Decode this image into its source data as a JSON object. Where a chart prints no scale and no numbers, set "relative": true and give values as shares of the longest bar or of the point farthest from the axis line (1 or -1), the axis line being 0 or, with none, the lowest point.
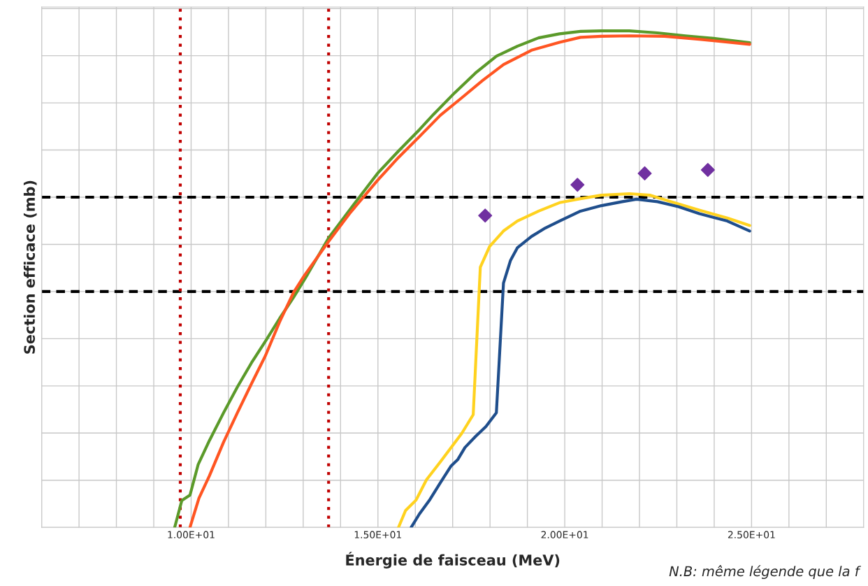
{
  "chart_data": {
    "type": "line",
    "relative": true,
    "xlabel": "Énergie de faisceau (MeV)",
    "ylabel": "Section efficace (mb)",
    "xlim": [
      6,
      28
    ],
    "xticks": [
      {
        "value": 6,
        "label": null
      },
      {
        "value": 7,
        "label": null
      },
      {
        "value": 8,
        "label": null
      },
      {
        "value": 9,
        "label": null
      },
      {
        "value": 10,
        "label": "1.00E+01"
      },
      {
        "value": 11,
        "label": null
      },
      {
        "value": 12,
        "label": null
      },
      {
        "value": 13,
        "label": null
      },
      {
        "value": 14,
        "label": null
      },
      {
        "value": 15,
        "label": "1.50E+01"
      },
      {
        "value": 16,
        "label": null
      },
      {
        "value": 17,
        "label": null
      },
      {
        "value": 18,
        "label": null
      },
      {
        "value": 19,
        "label": null
      },
      {
        "value": 20,
        "label": "2.00E+01"
      },
      {
        "value": 21,
        "label": null
      },
      {
        "value": 22,
        "label": null
      },
      {
        "value": 23,
        "label": null
      },
      {
        "value": 24,
        "label": null
      },
      {
        "value": 25,
        "label": "2.50E+01"
      },
      {
        "value": 26,
        "label": null
      },
      {
        "value": 27,
        "label": null
      },
      {
        "value": 28,
        "label": null
      }
    ],
    "grid": true,
    "tick_labels": "x",
    "marker": "none",
    "line_style": "solid",
    "series": [
      {
        "color": "#5b9a2a",
        "x": [
          9.56,
          9.75,
          9.97,
          10.19,
          10.49,
          10.87,
          11.24,
          11.62,
          11.99,
          12.37,
          12.74,
          13.12,
          13.68,
          14.24,
          14.99,
          15.55,
          16.11,
          16.49,
          17.05,
          17.61,
          18.17,
          18.73,
          19.3,
          19.86,
          20.42,
          20.98,
          21.73,
          22.48,
          23.23,
          23.98,
          24.95
        ],
        "values": [
          0,
          0.054,
          0.065,
          0.127,
          0.175,
          0.231,
          0.283,
          0.332,
          0.375,
          0.421,
          0.463,
          0.51,
          0.583,
          0.639,
          0.713,
          0.758,
          0.801,
          0.832,
          0.875,
          0.915,
          0.949,
          0.969,
          0.986,
          0.994,
          0.999,
          1.0,
          1.0,
          0.996,
          0.99,
          0.985,
          0.976
        ]
      },
      {
        "color": "#ff5522",
        "x": [
          9.97,
          10.21,
          10.49,
          10.87,
          11.24,
          11.62,
          11.99,
          12.37,
          12.74,
          13.02,
          13.68,
          14.24,
          14.99,
          15.55,
          16.11,
          16.67,
          17.24,
          17.8,
          18.36,
          19.11,
          19.86,
          20.42,
          20.98,
          21.73,
          22.67,
          23.6,
          24.95
        ],
        "values": [
          0,
          0.059,
          0.104,
          0.172,
          0.231,
          0.29,
          0.346,
          0.414,
          0.473,
          0.506,
          0.576,
          0.632,
          0.699,
          0.745,
          0.787,
          0.83,
          0.865,
          0.9,
          0.932,
          0.961,
          0.977,
          0.987,
          0.989,
          0.99,
          0.989,
          0.983,
          0.973
        ]
      },
      {
        "color": "#ffd21f",
        "x": [
          15.55,
          15.74,
          16.02,
          16.3,
          16.67,
          17.24,
          17.55,
          17.74,
          17.99,
          18.36,
          18.73,
          19.3,
          19.86,
          20.42,
          20.98,
          21.73,
          22.29,
          22.85,
          23.6,
          24.35,
          24.95
        ],
        "values": [
          0,
          0.034,
          0.055,
          0.096,
          0.132,
          0.189,
          0.227,
          0.524,
          0.566,
          0.597,
          0.617,
          0.637,
          0.654,
          0.662,
          0.669,
          0.672,
          0.669,
          0.656,
          0.639,
          0.623,
          0.608
        ]
      },
      {
        "color": "#1f4e8c",
        "x": [
          15.89,
          16.11,
          16.39,
          16.67,
          16.96,
          17.14,
          17.33,
          17.61,
          17.89,
          18.17,
          18.36,
          18.55,
          18.73,
          19.11,
          19.48,
          19.86,
          20.42,
          20.98,
          21.54,
          21.92,
          22.48,
          23.04,
          23.6,
          24.35,
          24.95
        ],
        "values": [
          0,
          0.027,
          0.056,
          0.09,
          0.124,
          0.137,
          0.161,
          0.183,
          0.203,
          0.231,
          0.492,
          0.538,
          0.563,
          0.586,
          0.603,
          0.617,
          0.637,
          0.648,
          0.656,
          0.661,
          0.656,
          0.646,
          0.632,
          0.617,
          0.597
        ]
      },
      {
        "type": "scatter",
        "marker": "diamond",
        "color": "#7030a0",
        "x": [
          17.87,
          20.34,
          22.14,
          23.83
        ],
        "values": [
          0.628,
          0.69,
          0.713,
          0.72
        ]
      }
    ],
    "ref_lines": [
      {
        "axis": "y",
        "value": 0.665,
        "color": "#000000",
        "line_style": "dashed"
      },
      {
        "axis": "y",
        "value": 0.475,
        "color": "#000000",
        "line_style": "dashed"
      },
      {
        "axis": "x",
        "value": 9.71,
        "color": "#c00000",
        "line_style": "dotted"
      },
      {
        "axis": "x",
        "value": 13.68,
        "color": "#c00000",
        "line_style": "dotted"
      }
    ],
    "annotations": [
      "N.B: même légende que la f"
    ]
  }
}
